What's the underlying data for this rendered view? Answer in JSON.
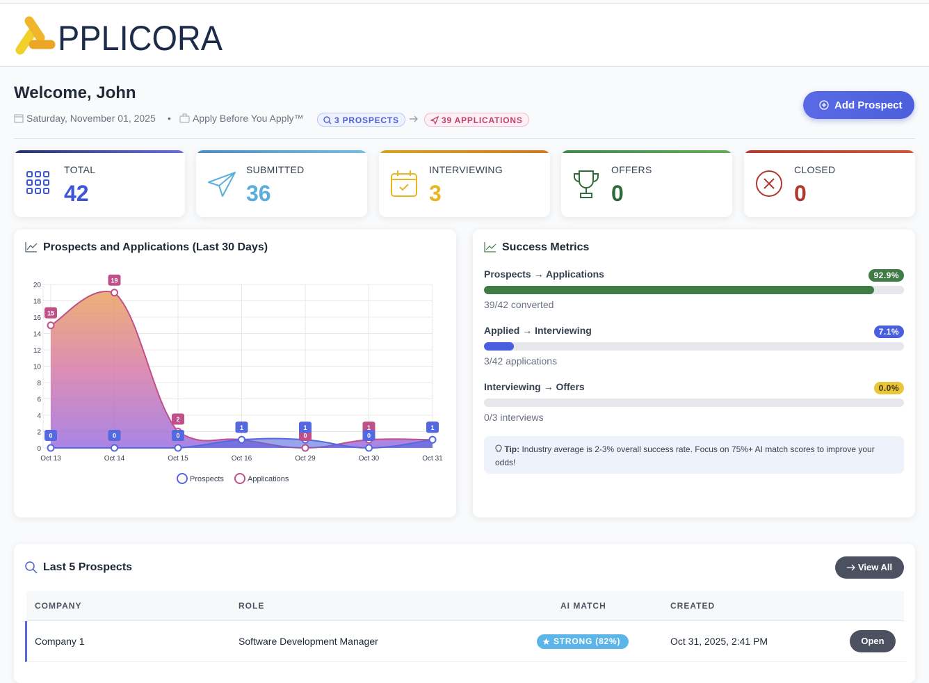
{
  "header": {
    "logo_text": "PPLICORA"
  },
  "welcome": {
    "title": "Welcome, John",
    "date": "Saturday, November 01, 2025",
    "separator": "•",
    "tagline": "Apply Before You Apply™",
    "prospects_pill": "3 PROSPECTS",
    "applications_pill": "39 APPLICATIONS",
    "add_button": "Add Prospect"
  },
  "stats": [
    {
      "label": "TOTAL",
      "value": 42,
      "color": "#3d55d9"
    },
    {
      "label": "SUBMITTED",
      "value": 36,
      "color": "#5aaedc"
    },
    {
      "label": "INTERVIEWING",
      "value": 3,
      "color": "#e6b722"
    },
    {
      "label": "OFFERS",
      "value": 0,
      "color": "#2f6b3a"
    },
    {
      "label": "CLOSED",
      "value": 0,
      "color": "#b0382c"
    }
  ],
  "chart_data": {
    "type": "line",
    "title": "Prospects and Applications (Last 30 Days)",
    "categories": [
      "Oct 13",
      "Oct 14",
      "Oct 15",
      "Oct 16",
      "Oct 29",
      "Oct 30",
      "Oct 31"
    ],
    "series": [
      {
        "name": "Prospects",
        "color": "#5468e0",
        "values": [
          0,
          0,
          0,
          1,
          1,
          0,
          1
        ]
      },
      {
        "name": "Applications",
        "color": "#c0508a",
        "values": [
          15,
          19,
          2,
          1,
          0,
          1,
          1
        ]
      }
    ],
    "ylim": [
      0,
      20
    ],
    "yticks": [
      0,
      2,
      4,
      6,
      8,
      10,
      12,
      14,
      16,
      18,
      20
    ],
    "grid": true,
    "area": true,
    "legend": "bottom"
  },
  "success": {
    "title": "Success Metrics",
    "metrics": [
      {
        "label": "Prospects → Applications",
        "value": 92.9,
        "value_label": "92.9%",
        "note": "39/42 converted",
        "color": "#3e7b45"
      },
      {
        "label": "Applied → Interviewing",
        "value": 7.1,
        "value_label": "7.1%",
        "note": "3/42 applications",
        "color": "#4a5fe0"
      },
      {
        "label": "Interviewing → Offers",
        "value": 0.0,
        "value_label": "0.0%",
        "note": "0/3 interviews",
        "color": "#e8c53a"
      }
    ],
    "tip_label": "Tip:",
    "tip": "Industry average is 2-3% overall success rate. Focus on 75%+ AI match scores to improve your odds!"
  },
  "prospects": {
    "title": "Last 5 Prospects",
    "view_all": "View All",
    "columns": [
      "COMPANY",
      "ROLE",
      "AI MATCH",
      "CREATED"
    ],
    "rows": [
      [
        "Company 1",
        "Software Development Manager",
        "STRONG (82%)",
        "Oct 31, 2025, 2:41 PM",
        "Open"
      ]
    ]
  }
}
